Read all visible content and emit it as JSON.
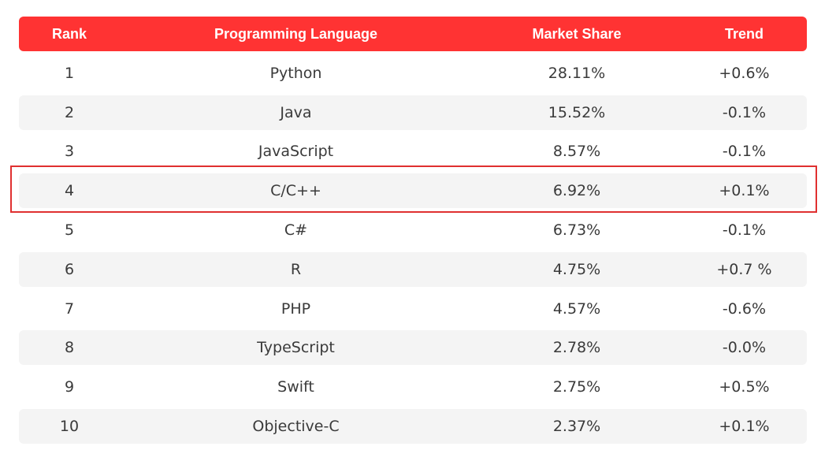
{
  "chart_data": {
    "type": "table",
    "columns": [
      "Rank",
      "Programming Language",
      "Market Share",
      "Trend"
    ],
    "rows": [
      [
        "1",
        "Python",
        "28.11%",
        "+0.6%"
      ],
      [
        "2",
        "Java",
        "15.52%",
        "-0.1%"
      ],
      [
        "3",
        "JavaScript",
        "8.57%",
        "-0.1%"
      ],
      [
        "4",
        "C/C++",
        "6.92%",
        "+0.1%"
      ],
      [
        "5",
        "C#",
        "6.73%",
        "-0.1%"
      ],
      [
        "6",
        "R",
        "4.75%",
        "+0.7 %"
      ],
      [
        "7",
        "PHP",
        "4.57%",
        "-0.6%"
      ],
      [
        "8",
        "TypeScript",
        "2.78%",
        "-0.0%"
      ],
      [
        "9",
        "Swift",
        "2.75%",
        "+0.5%"
      ],
      [
        "10",
        "Objective-C",
        "2.37%",
        "+0.1%"
      ]
    ],
    "highlighted_row_index": 3
  },
  "colors": {
    "header_bg": "#ff3333",
    "header_text": "#ffffff",
    "alt_row_bg": "#f4f4f4",
    "highlight_border": "#e03030",
    "body_text": "#3a3a3a"
  }
}
